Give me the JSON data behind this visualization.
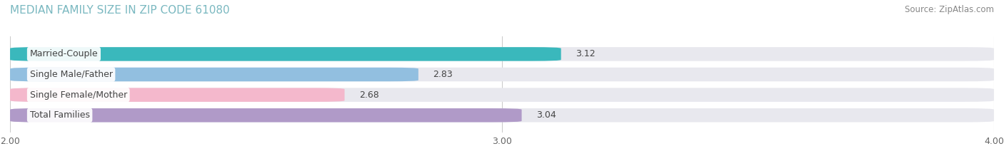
{
  "title": "MEDIAN FAMILY SIZE IN ZIP CODE 61080",
  "source": "Source: ZipAtlas.com",
  "categories": [
    "Married-Couple",
    "Single Male/Father",
    "Single Female/Mother",
    "Total Families"
  ],
  "values": [
    3.12,
    2.83,
    2.68,
    3.04
  ],
  "bar_colors": [
    "#3ab8bc",
    "#92bfe0",
    "#f4b8cc",
    "#b09ac8"
  ],
  "xlim_left": 2.0,
  "xlim_right": 4.0,
  "xticks": [
    2.0,
    3.0,
    4.0
  ],
  "xtick_labels": [
    "2.00",
    "3.00",
    "4.00"
  ],
  "bar_height": 0.68,
  "label_fontsize": 9,
  "value_fontsize": 9,
  "title_fontsize": 11,
  "source_fontsize": 8.5,
  "title_color": "#7ab8c0",
  "source_color": "#888888",
  "bar_label_color": "#444444",
  "value_label_color": "#444444",
  "background_color": "#ffffff",
  "bar_bg_color": "#e8e8ee"
}
